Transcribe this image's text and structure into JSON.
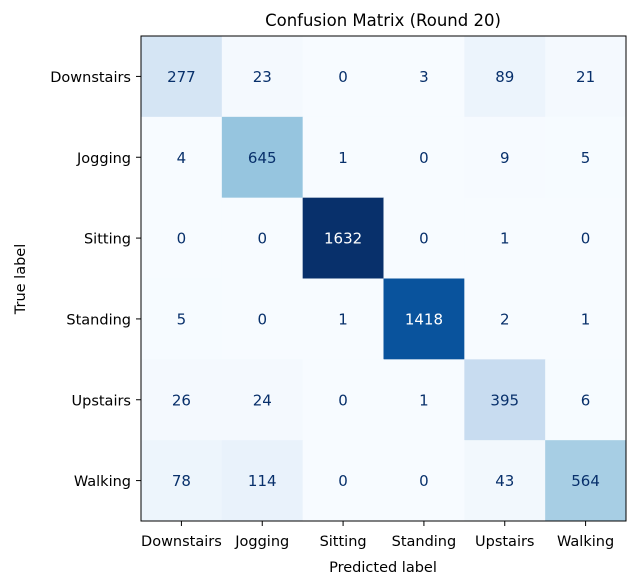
{
  "chart_data": {
    "type": "heatmap",
    "title": "Confusion Matrix (Round 20)",
    "xlabel": "Predicted label",
    "ylabel": "True label",
    "x_categories": [
      "Downstairs",
      "Jogging",
      "Sitting",
      "Standing",
      "Upstairs",
      "Walking"
    ],
    "y_categories": [
      "Downstairs",
      "Jogging",
      "Sitting",
      "Standing",
      "Upstairs",
      "Walking"
    ],
    "values": [
      [
        277,
        23,
        0,
        3,
        89,
        21
      ],
      [
        4,
        645,
        1,
        0,
        9,
        5
      ],
      [
        0,
        0,
        1632,
        0,
        1,
        0
      ],
      [
        5,
        0,
        1,
        1418,
        2,
        1
      ],
      [
        26,
        24,
        0,
        1,
        395,
        6
      ],
      [
        78,
        114,
        0,
        0,
        43,
        564
      ]
    ],
    "colormap": "Blues",
    "colorbar": false
  }
}
